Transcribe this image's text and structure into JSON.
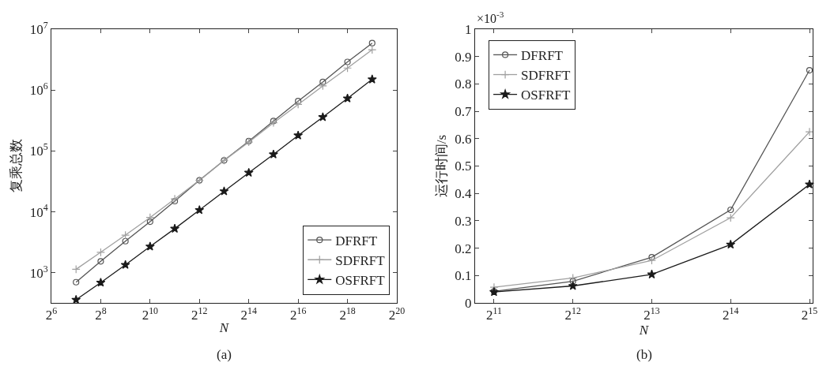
{
  "chart_data": [
    {
      "type": "line",
      "xlabel": "N",
      "ylabel": "复乘总数",
      "log": "xy",
      "grid": false,
      "legend": "bottom right",
      "line_style": "solid",
      "x": [
        128,
        256,
        512,
        1024,
        2048,
        4096,
        8192,
        16384,
        32768,
        65536,
        131072,
        262144,
        524288
      ],
      "xlim": [
        64,
        1048576
      ],
      "xticks": [
        {
          "value": 64,
          "label": "2$^{6}$"
        },
        {
          "value": 256,
          "label": "2$^{8}$"
        },
        {
          "value": 1024,
          "label": "2$^{10}$"
        },
        {
          "value": 4096,
          "label": "2$^{12}$"
        },
        {
          "value": 16384,
          "label": "2$^{14}$"
        },
        {
          "value": 65536,
          "label": "2$^{16}$"
        },
        {
          "value": 262144,
          "label": "2$^{18}$"
        },
        {
          "value": 1048576,
          "label": "2$^{20}$"
        }
      ],
      "ylim": [
        320,
        10000000
      ],
      "yticks": [
        {
          "value": 1000,
          "label": "10$^{3}$"
        },
        {
          "value": 10000,
          "label": "10$^{4}$"
        },
        {
          "value": 100000,
          "label": "10$^{5}$"
        },
        {
          "value": 1000000,
          "label": "10$^{6}$"
        },
        {
          "value": 10000000,
          "label": "10$^{7}$"
        }
      ],
      "series": [
        {
          "name": "DFRFT",
          "color": "#555555",
          "marker": "circle",
          "values": [
            700,
            1540,
            3300,
            6900,
            15000,
            33000,
            70000,
            145000,
            310000,
            660000,
            1360000,
            2900000,
            5900000
          ]
        },
        {
          "name": "SDFRFT",
          "color": "#a0a0a0",
          "marker": "cross",
          "values": [
            1140,
            2170,
            4150,
            8100,
            16300,
            33000,
            70000,
            140000,
            290000,
            580000,
            1170000,
            2300000,
            4600000
          ]
        },
        {
          "name": "OSFRFT",
          "color": "#1a1a1a",
          "marker": "star",
          "values": [
            360,
            690,
            1350,
            2700,
            5300,
            10700,
            21800,
            44000,
            88000,
            180000,
            360000,
            730000,
            1500000
          ]
        }
      ],
      "annotations": [
        "(a)"
      ]
    },
    {
      "type": "line",
      "xlabel": "N",
      "ylabel": "运行时间/s",
      "log": "x",
      "grid": false,
      "legend": "top left",
      "line_style": "solid",
      "x": [
        2048,
        4096,
        8192,
        16384,
        32768
      ],
      "xlim": [
        1734,
        33690
      ],
      "xticks": [
        {
          "value": 2048,
          "label": "2$^{11}$"
        },
        {
          "value": 4096,
          "label": "2$^{12}$"
        },
        {
          "value": 8192,
          "label": "2$^{13}$"
        },
        {
          "value": 16384,
          "label": "2$^{14}$"
        },
        {
          "value": 32768,
          "label": "2$^{15}$"
        }
      ],
      "ylim": [
        0,
        1
      ],
      "yticks": [
        0,
        0.1,
        0.2,
        0.3,
        0.4,
        0.5,
        0.6,
        0.7,
        0.8,
        0.9,
        1
      ],
      "series": [
        {
          "name": "DFRFT",
          "color": "#555555",
          "marker": "circle",
          "values": [
            0.042,
            0.079,
            0.167,
            0.34,
            0.85
          ]
        },
        {
          "name": "SDFRFT",
          "color": "#a0a0a0",
          "marker": "cross",
          "values": [
            0.057,
            0.091,
            0.155,
            0.311,
            0.625
          ]
        },
        {
          "name": "OSFRFT",
          "color": "#1a1a1a",
          "marker": "star",
          "values": [
            0.04,
            0.062,
            0.104,
            0.213,
            0.433
          ]
        }
      ],
      "annotations": [
        "×10$^{-3}$",
        "(b)"
      ]
    }
  ]
}
